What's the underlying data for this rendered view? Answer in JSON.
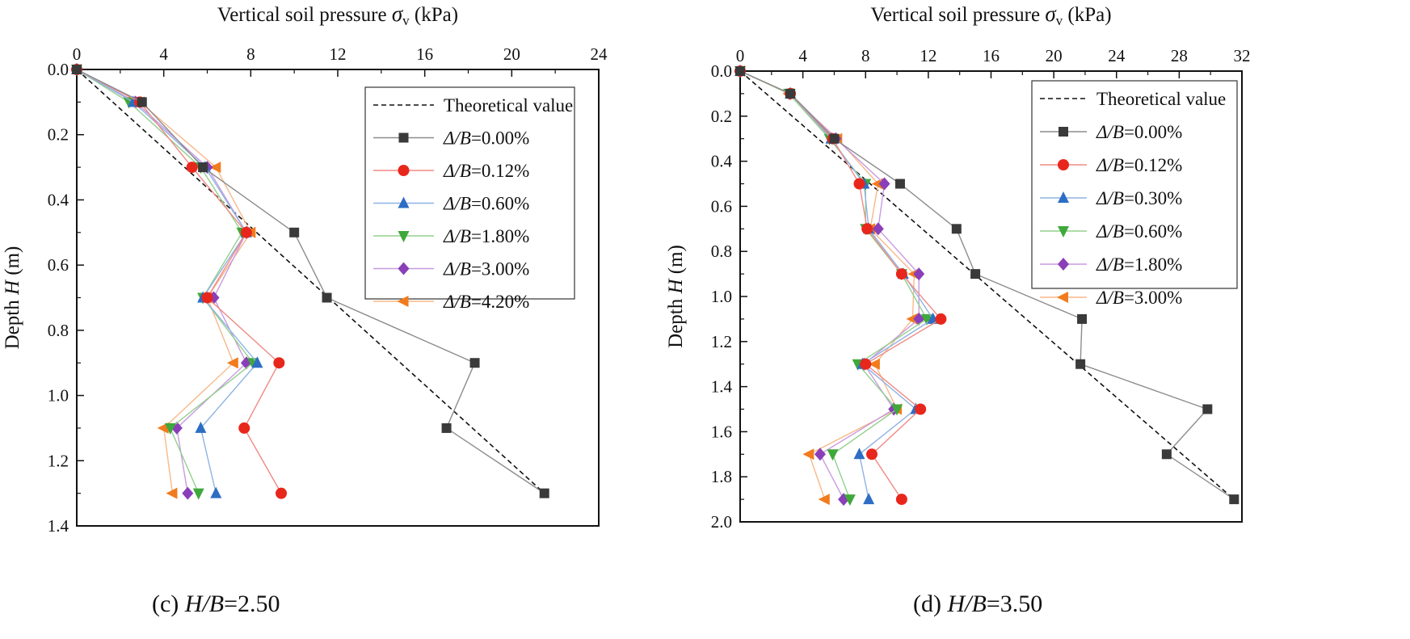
{
  "chart_data": [
    {
      "type": "line",
      "caption_prefix": "(c) ",
      "caption_var": "H/B",
      "caption_value": "=2.50",
      "xlabel_text": "Vertical soil pressure  ",
      "xlabel_symbol": "σ",
      "xlabel_sub": "v",
      "xlabel_unit": " (kPa)",
      "ylabel_text": "Depth ",
      "ylabel_var": "H",
      "ylabel_unit": " (m)",
      "xlim": [
        0,
        24
      ],
      "ylim": [
        0,
        1.4
      ],
      "xticks": [
        "0",
        "4",
        "8",
        "12",
        "16",
        "20",
        "24"
      ],
      "yticks": [
        "0.0",
        "0.2",
        "0.4",
        "0.6",
        "0.8",
        "1.0",
        "1.2",
        "1.4"
      ],
      "legend_position": "top-right",
      "theory": {
        "label": "Theoretical value",
        "points": [
          [
            0,
            0
          ],
          [
            21.5,
            1.3
          ]
        ]
      },
      "series": [
        {
          "var": "Δ/B",
          "val": "=0.00%",
          "marker": "square",
          "color": "#3a3a3a",
          "line": "#8c8c8c",
          "x": [
            0,
            3.0,
            5.8,
            10.0,
            11.5,
            18.3,
            17.0,
            21.5
          ],
          "y": [
            0,
            0.1,
            0.3,
            0.5,
            0.7,
            0.9,
            1.1,
            1.3
          ]
        },
        {
          "var": "Δ/B",
          "val": "=0.12%",
          "marker": "circle",
          "color": "#e8271c",
          "line": "#f08a84",
          "x": [
            0,
            2.9,
            5.3,
            7.8,
            6.0,
            9.3,
            7.7,
            9.4
          ],
          "y": [
            0,
            0.1,
            0.3,
            0.5,
            0.7,
            0.9,
            1.1,
            1.3
          ]
        },
        {
          "var": "Δ/B",
          "val": "=0.60%",
          "marker": "triangle-up",
          "color": "#2d6ec4",
          "line": "#8fb3e3",
          "x": [
            0,
            2.6,
            5.9,
            7.8,
            5.8,
            8.3,
            5.7,
            6.4
          ],
          "y": [
            0,
            0.1,
            0.3,
            0.5,
            0.7,
            0.9,
            1.1,
            1.3
          ]
        },
        {
          "var": "Δ/B",
          "val": "=1.80%",
          "marker": "triangle-down",
          "color": "#3fa83a",
          "line": "#93d08e",
          "x": [
            0,
            2.4,
            5.7,
            7.6,
            5.8,
            8.1,
            4.3,
            5.6
          ],
          "y": [
            0,
            0.1,
            0.3,
            0.5,
            0.7,
            0.9,
            1.1,
            1.3
          ]
        },
        {
          "var": "Δ/B",
          "val": "=3.00%",
          "marker": "diamond",
          "color": "#8a3fb8",
          "line": "#c89be0",
          "x": [
            0,
            2.7,
            6.0,
            7.8,
            6.3,
            7.8,
            4.6,
            5.1
          ],
          "y": [
            0,
            0.1,
            0.3,
            0.5,
            0.7,
            0.9,
            1.1,
            1.3
          ]
        },
        {
          "var": "Δ/B",
          "val": "=4.20%",
          "marker": "triangle-left",
          "color": "#f27b1d",
          "line": "#f7b98a",
          "x": [
            0,
            2.9,
            6.4,
            8.0,
            6.0,
            7.2,
            4.0,
            4.4
          ],
          "y": [
            0,
            0.1,
            0.3,
            0.5,
            0.7,
            0.9,
            1.1,
            1.3
          ]
        }
      ]
    },
    {
      "type": "line",
      "caption_prefix": "(d) ",
      "caption_var": "H/B",
      "caption_value": "=3.50",
      "xlabel_text": "Vertical soil pressure  ",
      "xlabel_symbol": "σ",
      "xlabel_sub": "v",
      "xlabel_unit": " (kPa)",
      "ylabel_text": "Depth ",
      "ylabel_var": "H",
      "ylabel_unit": " (m)",
      "xlim": [
        0,
        32
      ],
      "ylim": [
        0,
        2.0
      ],
      "xticks": [
        "0",
        "4",
        "8",
        "12",
        "16",
        "20",
        "24",
        "28",
        "32"
      ],
      "yticks": [
        "0.0",
        "0.2",
        "0.4",
        "0.6",
        "0.8",
        "1.0",
        "1.2",
        "1.4",
        "1.6",
        "1.8",
        "2.0"
      ],
      "legend_position": "top-right",
      "theory": {
        "label": "Theoretical value",
        "points": [
          [
            0,
            0
          ],
          [
            31.5,
            1.9
          ]
        ]
      },
      "series": [
        {
          "var": "Δ/B",
          "val": "=0.00%",
          "marker": "square",
          "color": "#3a3a3a",
          "line": "#8c8c8c",
          "x": [
            0,
            3.2,
            6.0,
            10.2,
            13.8,
            15.0,
            21.8,
            21.7,
            29.8,
            27.2,
            31.5
          ],
          "y": [
            0,
            0.1,
            0.3,
            0.5,
            0.7,
            0.9,
            1.1,
            1.3,
            1.5,
            1.7,
            1.9
          ]
        },
        {
          "var": "Δ/B",
          "val": "=0.12%",
          "marker": "circle",
          "color": "#e8271c",
          "line": "#f08a84",
          "x": [
            0,
            3.2,
            5.9,
            7.6,
            8.1,
            10.3,
            12.8,
            8.0,
            11.5,
            8.4,
            10.3
          ],
          "y": [
            0,
            0.1,
            0.3,
            0.5,
            0.7,
            0.9,
            1.1,
            1.3,
            1.5,
            1.7,
            1.9
          ]
        },
        {
          "var": "Δ/B",
          "val": "=0.30%",
          "marker": "triangle-up",
          "color": "#2d6ec4",
          "line": "#8fb3e3",
          "x": [
            0,
            3.2,
            5.8,
            7.9,
            8.2,
            10.4,
            12.3,
            7.8,
            11.2,
            7.6,
            8.2
          ],
          "y": [
            0,
            0.1,
            0.3,
            0.5,
            0.7,
            0.9,
            1.1,
            1.3,
            1.5,
            1.7,
            1.9
          ]
        },
        {
          "var": "Δ/B",
          "val": "=0.60%",
          "marker": "triangle-down",
          "color": "#3fa83a",
          "line": "#93d08e",
          "x": [
            0,
            3.1,
            5.7,
            8.0,
            8.0,
            10.3,
            11.9,
            7.5,
            10.0,
            5.9,
            7.0
          ],
          "y": [
            0,
            0.1,
            0.3,
            0.5,
            0.7,
            0.9,
            1.1,
            1.3,
            1.5,
            1.7,
            1.9
          ]
        },
        {
          "var": "Δ/B",
          "val": "=1.80%",
          "marker": "diamond",
          "color": "#8a3fb8",
          "line": "#c89be0",
          "x": [
            0,
            3.2,
            6.1,
            9.2,
            8.8,
            11.4,
            11.4,
            7.9,
            9.8,
            5.1,
            6.6
          ],
          "y": [
            0,
            0.1,
            0.3,
            0.5,
            0.7,
            0.9,
            1.1,
            1.3,
            1.5,
            1.7,
            1.9
          ]
        },
        {
          "var": "Δ/B",
          "val": "=3.00%",
          "marker": "triangle-left",
          "color": "#f27b1d",
          "line": "#f7b98a",
          "x": [
            0,
            3.1,
            6.2,
            8.8,
            8.3,
            11.1,
            11.0,
            8.6,
            10.0,
            4.4,
            5.4
          ],
          "y": [
            0,
            0.1,
            0.3,
            0.5,
            0.7,
            0.9,
            1.1,
            1.3,
            1.5,
            1.7,
            1.9
          ]
        }
      ]
    }
  ]
}
